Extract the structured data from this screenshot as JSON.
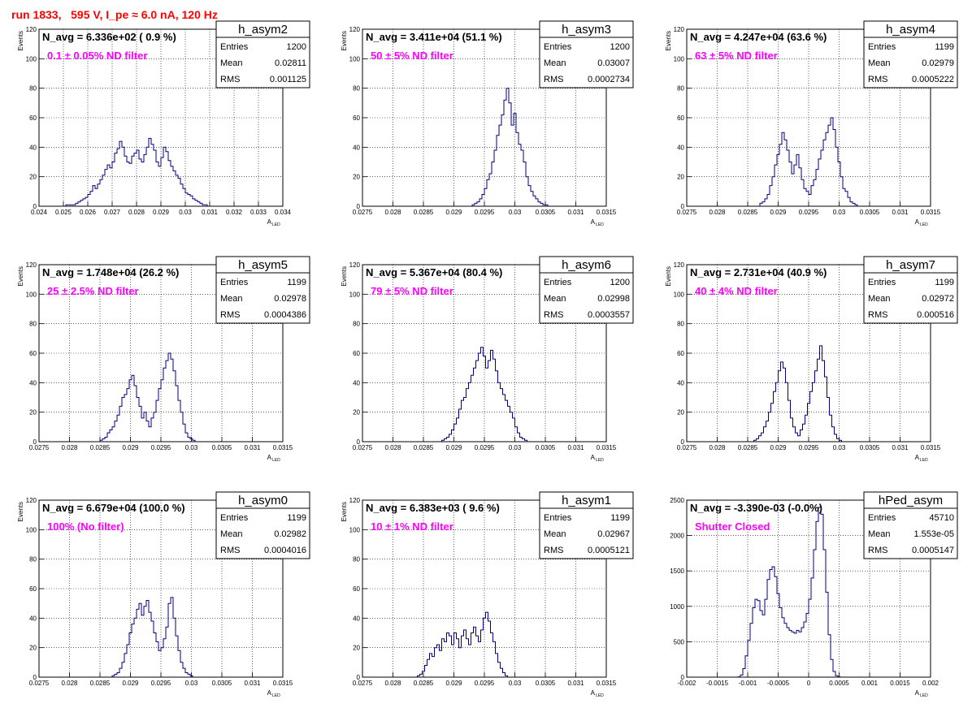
{
  "title": "run 1833,   595 V, I_pe ≈ 6.0 nA, 120 Hz",
  "title_color": "#ff0000",
  "line_color": "#000080",
  "filter_color": "#ff00ff",
  "chart_data": [
    {
      "type": "histogram",
      "name": "h_asym2",
      "navg": "N_avg = 6.336e+02 ( 0.9 %)",
      "filter": "0.1 ± 0.05% ND filter",
      "stats": [
        [
          "Entries",
          "1200"
        ],
        [
          "Mean",
          "0.02811"
        ],
        [
          "RMS",
          "0.001125"
        ]
      ],
      "xlabel": "A",
      "xlabel_sub": "LED",
      "ylabel": "Events",
      "xlim": [
        0.024,
        0.034
      ],
      "ylim": [
        0,
        120
      ],
      "xticks": [
        "0.024",
        "0.025",
        "0.026",
        "0.027",
        "0.028",
        "0.029",
        "0.03",
        "0.031",
        "0.032",
        "0.033",
        "0.034"
      ],
      "yticks": [
        "0",
        "20",
        "40",
        "60",
        "80",
        "100",
        "120"
      ],
      "bins": {
        "start": 0.025,
        "width": 0.0001,
        "values": [
          0,
          1,
          1,
          1,
          1,
          2,
          3,
          4,
          5,
          6,
          8,
          10,
          14,
          12,
          15,
          18,
          21,
          25,
          28,
          26,
          30,
          36,
          39,
          44,
          40,
          34,
          30,
          29,
          34,
          36,
          38,
          32,
          30,
          35,
          40,
          46,
          42,
          38,
          30,
          27,
          33,
          40,
          37,
          31,
          27,
          24,
          21,
          19,
          15,
          12,
          9,
          8,
          7,
          5,
          4,
          3,
          2,
          1,
          1,
          0
        ]
      }
    },
    {
      "type": "histogram",
      "name": "h_asym3",
      "navg": "N_avg = 3.411e+04 (51.1 %)",
      "filter": "50 ± 5% ND filter",
      "stats": [
        [
          "Entries",
          "1200"
        ],
        [
          "Mean",
          "0.03007"
        ],
        [
          "RMS",
          "0.0002734"
        ]
      ],
      "xlabel": "A",
      "xlabel_sub": "LED",
      "ylabel": "Events",
      "xlim": [
        0.0275,
        0.0315
      ],
      "ylim": [
        0,
        120
      ],
      "xticks": [
        "0.0275",
        "0.028",
        "0.0285",
        "0.029",
        "0.0295",
        "0.03",
        "0.0305",
        "0.031",
        "0.0315"
      ],
      "yticks": [
        "0",
        "20",
        "40",
        "60",
        "80",
        "100",
        "120"
      ],
      "bins": {
        "start": 0.0293,
        "width": 4e-05,
        "values": [
          1,
          2,
          3,
          5,
          8,
          12,
          18,
          22,
          30,
          38,
          48,
          55,
          62,
          72,
          80,
          70,
          55,
          63,
          50,
          42,
          38,
          30,
          20,
          14,
          10,
          7,
          5,
          3,
          2,
          1,
          1
        ]
      }
    },
    {
      "type": "histogram",
      "name": "h_asym4",
      "navg": "N_avg = 4.247e+04 (63.6 %)",
      "filter": "63 ± 5% ND filter",
      "stats": [
        [
          "Entries",
          "1199"
        ],
        [
          "Mean",
          "0.02979"
        ],
        [
          "RMS",
          "0.0005222"
        ]
      ],
      "xlabel": "A",
      "xlabel_sub": "LED",
      "ylabel": "Events",
      "xlim": [
        0.0275,
        0.0315
      ],
      "ylim": [
        0,
        120
      ],
      "xticks": [
        "0.0275",
        "0.028",
        "0.0285",
        "0.029",
        "0.0295",
        "0.03",
        "0.0305",
        "0.031",
        "0.0315"
      ],
      "yticks": [
        "0",
        "20",
        "40",
        "60",
        "80",
        "100",
        "120"
      ],
      "bins": {
        "start": 0.0287,
        "width": 4e-05,
        "values": [
          2,
          3,
          5,
          8,
          14,
          20,
          28,
          35,
          42,
          50,
          45,
          38,
          30,
          22,
          28,
          35,
          26,
          18,
          12,
          10,
          8,
          14,
          18,
          25,
          32,
          38,
          45,
          50,
          55,
          60,
          52,
          40,
          30,
          20,
          12,
          10,
          6,
          3,
          2,
          1,
          0,
          0
        ]
      }
    },
    {
      "type": "histogram",
      "name": "h_asym5",
      "navg": "N_avg = 1.748e+04 (26.2 %)",
      "filter": "25 ± 2.5% ND filter",
      "stats": [
        [
          "Entries",
          "1199"
        ],
        [
          "Mean",
          "0.02978"
        ],
        [
          "RMS",
          "0.0004386"
        ]
      ],
      "xlabel": "A",
      "xlabel_sub": "LED",
      "ylabel": "Events",
      "xlim": [
        0.0275,
        0.0315
      ],
      "ylim": [
        0,
        120
      ],
      "xticks": [
        "0.0275",
        "0.028",
        "0.0285",
        "0.029",
        "0.0295",
        "0.03",
        "0.0305",
        "0.031",
        "0.0315"
      ],
      "yticks": [
        "0",
        "20",
        "40",
        "60",
        "80",
        "100",
        "120"
      ],
      "bins": {
        "start": 0.0285,
        "width": 4e-05,
        "values": [
          1,
          2,
          3,
          6,
          8,
          10,
          14,
          18,
          24,
          30,
          32,
          36,
          42,
          45,
          38,
          30,
          24,
          16,
          20,
          14,
          10,
          16,
          20,
          28,
          36,
          42,
          50,
          55,
          60,
          56,
          48,
          38,
          28,
          20,
          12,
          6,
          3,
          2,
          1,
          0
        ]
      }
    },
    {
      "type": "histogram",
      "name": "h_asym6",
      "navg": "N_avg = 5.367e+04 (80.4 %)",
      "filter": "79 ± 5% ND filter",
      "stats": [
        [
          "Entries",
          "1200"
        ],
        [
          "Mean",
          "0.02998"
        ],
        [
          "RMS",
          "0.0003557"
        ]
      ],
      "xlabel": "A",
      "xlabel_sub": "LED",
      "ylabel": "Events",
      "xlim": [
        0.0275,
        0.0315
      ],
      "ylim": [
        0,
        120
      ],
      "xticks": [
        "0.0275",
        "0.028",
        "0.0285",
        "0.029",
        "0.0295",
        "0.03",
        "0.0305",
        "0.031",
        "0.0315"
      ],
      "yticks": [
        "0",
        "20",
        "40",
        "60",
        "80",
        "100",
        "120"
      ],
      "bins": {
        "start": 0.0288,
        "width": 4e-05,
        "values": [
          1,
          2,
          3,
          5,
          8,
          12,
          16,
          22,
          28,
          30,
          36,
          40,
          45,
          50,
          55,
          60,
          64,
          58,
          50,
          55,
          62,
          56,
          48,
          40,
          36,
          32,
          28,
          24,
          20,
          16,
          10,
          6,
          3,
          2,
          1
        ]
      }
    },
    {
      "type": "histogram",
      "name": "h_asym7",
      "navg": "N_avg = 2.731e+04 (40.9 %)",
      "filter": "40 ± 4% ND filter",
      "stats": [
        [
          "Entries",
          "1199"
        ],
        [
          "Mean",
          "0.02972"
        ],
        [
          "RMS",
          "0.000516"
        ]
      ],
      "xlabel": "A",
      "xlabel_sub": "LED",
      "ylabel": "Events",
      "xlim": [
        0.0275,
        0.0315
      ],
      "ylim": [
        0,
        120
      ],
      "xticks": [
        "0.0275",
        "0.028",
        "0.0285",
        "0.029",
        "0.0295",
        "0.03",
        "0.0305",
        "0.031",
        "0.0315"
      ],
      "yticks": [
        "0",
        "20",
        "40",
        "60",
        "80",
        "100",
        "120"
      ],
      "bins": {
        "start": 0.0286,
        "width": 4e-05,
        "values": [
          1,
          2,
          4,
          6,
          10,
          14,
          20,
          26,
          34,
          40,
          48,
          54,
          50,
          40,
          28,
          16,
          10,
          6,
          4,
          8,
          12,
          18,
          26,
          34,
          40,
          48,
          56,
          65,
          55,
          44,
          30,
          18,
          10,
          5,
          2,
          1,
          0
        ]
      }
    },
    {
      "type": "histogram",
      "name": "h_asym0",
      "navg": "N_avg = 6.679e+04 (100.0 %)",
      "filter": "100% (No filter)",
      "stats": [
        [
          "Entries",
          "1199"
        ],
        [
          "Mean",
          "0.02982"
        ],
        [
          "RMS",
          "0.0004016"
        ]
      ],
      "xlabel": "A",
      "xlabel_sub": "LED",
      "ylabel": "Events",
      "xlim": [
        0.0275,
        0.0315
      ],
      "ylim": [
        0,
        120
      ],
      "xticks": [
        "0.0275",
        "0.028",
        "0.0285",
        "0.029",
        "0.0295",
        "0.03",
        "0.0305",
        "0.031",
        "0.0315"
      ],
      "yticks": [
        "0",
        "20",
        "40",
        "60",
        "80",
        "100",
        "120"
      ],
      "bins": {
        "start": 0.0287,
        "width": 4e-05,
        "values": [
          1,
          2,
          3,
          6,
          10,
          16,
          22,
          30,
          36,
          40,
          46,
          50,
          42,
          48,
          52,
          44,
          38,
          30,
          24,
          18,
          20,
          26,
          34,
          50,
          54,
          40,
          28,
          18,
          10,
          6,
          3,
          2,
          1,
          0
        ]
      }
    },
    {
      "type": "histogram",
      "name": "h_asym1",
      "navg": "N_avg = 6.383e+03 ( 9.6 %)",
      "filter": "10 ± 1% ND filter",
      "stats": [
        [
          "Entries",
          "1199"
        ],
        [
          "Mean",
          "0.02967"
        ],
        [
          "RMS",
          "0.0005121"
        ]
      ],
      "xlabel": "A",
      "xlabel_sub": "LED",
      "ylabel": "Events",
      "xlim": [
        0.0275,
        0.0315
      ],
      "ylim": [
        0,
        120
      ],
      "xticks": [
        "0.0275",
        "0.028",
        "0.0285",
        "0.029",
        "0.0295",
        "0.03",
        "0.0305",
        "0.031",
        "0.0315"
      ],
      "yticks": [
        "0",
        "20",
        "40",
        "60",
        "80",
        "100",
        "120"
      ],
      "bins": {
        "start": 0.0284,
        "width": 4e-05,
        "values": [
          1,
          2,
          4,
          8,
          12,
          16,
          14,
          20,
          22,
          18,
          26,
          24,
          30,
          28,
          22,
          30,
          26,
          20,
          28,
          32,
          26,
          22,
          30,
          34,
          28,
          24,
          32,
          40,
          44,
          38,
          30,
          24,
          16,
          10,
          6,
          3,
          1,
          0
        ]
      }
    },
    {
      "type": "histogram",
      "name": "hPed_asym",
      "navg": "N_avg = -3.390e-03 (-0.0%)",
      "filter": "Shutter Closed",
      "stats": [
        [
          "Entries",
          "45710"
        ],
        [
          "Mean",
          "1.553e-05"
        ],
        [
          "RMS",
          "0.0005147"
        ]
      ],
      "xlabel": "A",
      "xlabel_sub": "LED",
      "ylabel": "",
      "xlim": [
        -0.002,
        0.002
      ],
      "ylim": [
        0,
        2500
      ],
      "xticks": [
        "-0.002",
        "-0.0015",
        "-0.001",
        "-0.0005",
        "0",
        "0.0005",
        "0.001",
        "0.0015",
        "0.002"
      ],
      "yticks": [
        "0",
        "500",
        "1000",
        "1500",
        "2000",
        "2500"
      ],
      "bins": {
        "start": -0.00116,
        "width": 4e-05,
        "values": [
          5,
          30,
          120,
          300,
          520,
          760,
          980,
          1100,
          1080,
          940,
          880,
          1100,
          1380,
          1520,
          1560,
          1420,
          1180,
          980,
          840,
          760,
          700,
          660,
          640,
          620,
          660,
          640,
          700,
          780,
          900,
          1100,
          1400,
          1800,
          2200,
          2400,
          2300,
          1800,
          1200,
          600,
          250,
          80,
          20,
          5
        ]
      }
    }
  ]
}
